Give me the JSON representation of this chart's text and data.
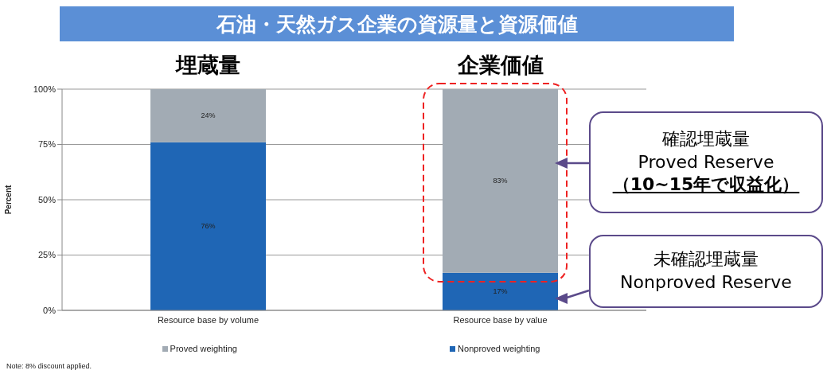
{
  "chart_data": {
    "type": "bar",
    "title": "石油・天然ガス企業の資源量と資源価値",
    "ylabel": "Percent",
    "categories": [
      "Resource base by volume",
      "Resource base by value"
    ],
    "stacked": true,
    "series": [
      {
        "name": "Nonproved weighting",
        "color": "#1f66b5",
        "values": [
          76,
          17
        ],
        "value_labels": [
          "76%",
          "17%"
        ]
      },
      {
        "name": "Proved weighting",
        "color": "#a2abb4",
        "values": [
          24,
          83
        ],
        "value_labels": [
          "24%",
          "83%"
        ]
      }
    ],
    "ylim": [
      0,
      100
    ],
    "yticks": [
      {
        "value": 0,
        "label": "0%"
      },
      {
        "value": 25,
        "label": "25%"
      },
      {
        "value": 50,
        "label": "50%"
      },
      {
        "value": 75,
        "label": "75%"
      },
      {
        "value": 100,
        "label": "100%"
      }
    ],
    "grid": "y",
    "legend": "bottom",
    "annotations": [
      "埋蔵量",
      "企業価値",
      "確認埋蔵量\nProved Reserve\n（10~15年で収益化）",
      "未確認埋蔵量\nNonproved Reserve",
      "Note: 8% discount applied."
    ]
  }
}
